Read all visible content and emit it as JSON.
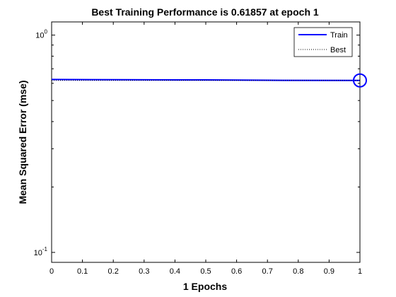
{
  "chart_data": {
    "type": "line",
    "title": "Best Training Performance is 0.61857 at epoch 1",
    "xlabel": "1 Epochs",
    "ylabel": "Mean Squared Error  (mse)",
    "xlim": [
      0,
      1
    ],
    "ylim": [
      0.09,
      1.15
    ],
    "yscale": "log",
    "grid": false,
    "legend_position": "top-right",
    "x_ticks": [
      0,
      0.1,
      0.2,
      0.3,
      0.4,
      0.5,
      0.6,
      0.7,
      0.8,
      0.9,
      1
    ],
    "x_tick_labels": [
      "0",
      "0.1",
      "0.2",
      "0.3",
      "0.4",
      "0.5",
      "0.6",
      "0.7",
      "0.8",
      "0.9",
      "1"
    ],
    "y_ticks": [
      {
        "value": 1,
        "base": "10",
        "exp": "0"
      },
      {
        "value": 0.1,
        "base": "10",
        "exp": "-1"
      }
    ],
    "series": [
      {
        "name": "Train",
        "color": "#0000ff",
        "style": "solid",
        "x": [
          0,
          0.25,
          0.5,
          0.75,
          1
        ],
        "y": [
          0.625,
          0.623,
          0.622,
          0.619,
          0.61857
        ]
      },
      {
        "name": "Best",
        "color": "#000000",
        "style": "dotted",
        "x": [
          0,
          1
        ],
        "y": [
          0.61857,
          0.61857
        ]
      }
    ],
    "best_marker": {
      "x": 1,
      "y": 0.61857,
      "color": "#0000ff",
      "shape": "circle"
    },
    "best_vline": {
      "x": 1,
      "color": "#000000",
      "style": "dotted"
    }
  }
}
